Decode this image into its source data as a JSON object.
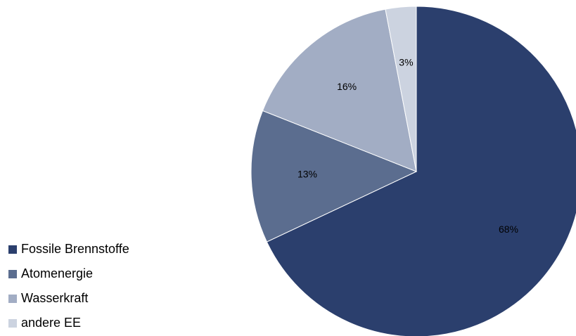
{
  "chart_data": {
    "type": "pie",
    "title": "",
    "slices": [
      {
        "name": "Fossile Brennstoffe",
        "value": 68,
        "label": "68%",
        "color": "#2b3f6d"
      },
      {
        "name": "Atomenergie",
        "value": 13,
        "label": "13%",
        "color": "#5b6d8f"
      },
      {
        "name": "Wasserkraft",
        "value": 16,
        "label": "16%",
        "color": "#a2adc4"
      },
      {
        "name": "andere EE",
        "value": 3,
        "label": "3%",
        "color": "#ccd3e0"
      }
    ],
    "start": "12 o'clock",
    "direction": "clockwise",
    "legend_position": "left-bottom"
  }
}
